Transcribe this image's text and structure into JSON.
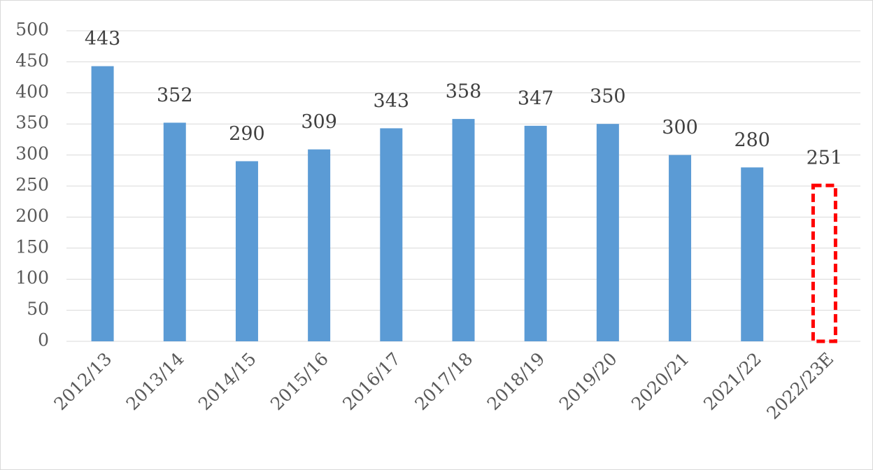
{
  "chart_data": {
    "type": "bar",
    "categories": [
      "2012/13",
      "2013/14",
      "2014/15",
      "2015/16",
      "2016/17",
      "2017/18",
      "2018/19",
      "2019/20",
      "2020/21",
      "2021/22",
      "2022/23E"
    ],
    "values": [
      443,
      352,
      290,
      309,
      343,
      358,
      347,
      350,
      300,
      280,
      251
    ],
    "colors": [
      "#5b9bd5",
      "#5b9bd5",
      "#5b9bd5",
      "#5b9bd5",
      "#5b9bd5",
      "#5b9bd5",
      "#5b9bd5",
      "#5b9bd5",
      "#5b9bd5",
      "#5b9bd5",
      "none"
    ],
    "edgecolors": [
      "none",
      "none",
      "none",
      "none",
      "none",
      "none",
      "none",
      "none",
      "none",
      "none",
      "#ff0000"
    ],
    "edgestyle": "dashed",
    "data_labels": true,
    "ylim": [
      0,
      500
    ],
    "yticks": [
      0,
      50,
      100,
      150,
      200,
      250,
      300,
      350,
      400,
      450,
      500
    ],
    "grid": true
  }
}
